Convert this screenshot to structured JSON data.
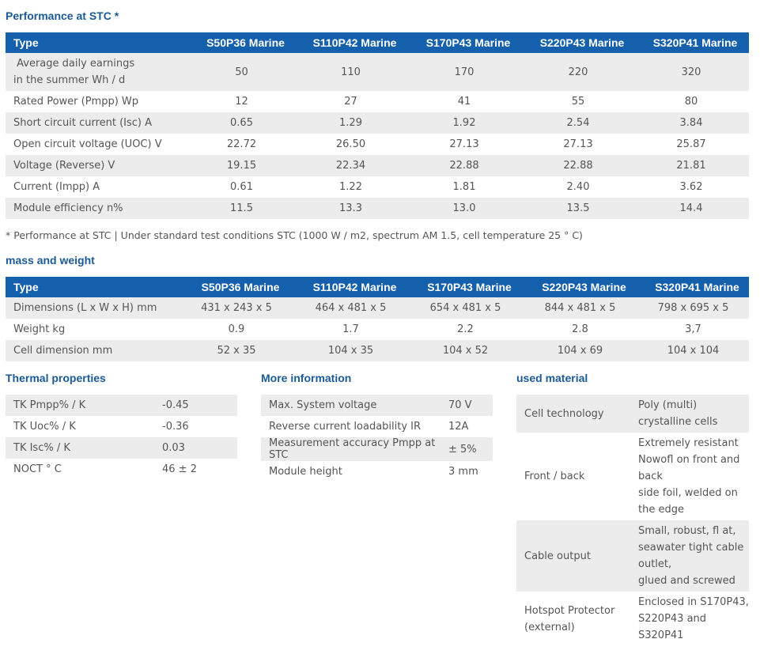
{
  "performance": {
    "title": "Performance at STC *",
    "header": [
      "Type",
      "S50P36 Marine",
      "S110P42 Marine",
      "S170P43 Marine",
      "S220P43 Marine",
      "S320P41 Marine"
    ],
    "rows": [
      {
        "label_line1": " Average daily earnings",
        "label_line2": "in the summer Wh / d",
        "values": [
          "50",
          "110",
          "170",
          "220",
          "320"
        ]
      },
      {
        "label": "Rated Power (Pmpp) Wp",
        "values": [
          "12",
          "27",
          "41",
          "55",
          "80"
        ]
      },
      {
        "label": "Short circuit current (Isc) A",
        "values": [
          "0.65",
          "1.29",
          "1.92",
          "2.54",
          "3.84"
        ]
      },
      {
        "label": "Open circuit voltage (UOC) V",
        "values": [
          "22.72",
          "26.50",
          "27.13",
          "27.13",
          "25.87"
        ]
      },
      {
        "label": "Voltage (Reverse) V",
        "values": [
          "19.15",
          "22.34",
          "22.88",
          "22.88",
          "21.81"
        ]
      },
      {
        "label": "Current (Impp) A",
        "values": [
          "0.61",
          "1.22",
          "1.81",
          "2.40",
          "3.62"
        ]
      },
      {
        "label": "Module efficiency n%",
        "values": [
          "11.5",
          "13.3",
          "13.0",
          "13.5",
          "14.4"
        ]
      }
    ],
    "footnote": "* Performance at STC | Under standard test conditions STC (1000 W / m2, spectrum AM 1.5, cell temperature 25 ° C)"
  },
  "mass": {
    "title": "mass and weight",
    "header": [
      "Type",
      "S50P36 Marine",
      "S110P42 Marine",
      "S170P43 Marine",
      "S220P43 Marine",
      "S320P41 Marine"
    ],
    "rows": [
      {
        "label": "Dimensions (L x W x H) mm",
        "values": [
          "431 x 243 x 5",
          "464 x 481 x 5",
          "654 x 481 x 5",
          "844 x 481 x 5",
          "798 x 695 x 5"
        ]
      },
      {
        "label": "Weight kg",
        "values": [
          "0.9",
          "1.7",
          "2.2",
          "2.8",
          "3,7"
        ]
      },
      {
        "label": "Cell dimension mm",
        "values": [
          "52 x 35",
          "104 x 35",
          "104 x 52",
          "104 x 69",
          "104 x 104"
        ]
      }
    ]
  },
  "thermal": {
    "title": "Thermal properties",
    "rows": [
      {
        "label": "TK Pmpp% / K",
        "value": "-0.45"
      },
      {
        "label": "TK Uoc% / K",
        "value": "-0.36"
      },
      {
        "label": "TK Isc% / K",
        "value": "0.03"
      },
      {
        "label": "NOCT ° C",
        "value": "46 ± 2"
      }
    ]
  },
  "more_info": {
    "title": "More information",
    "rows": [
      {
        "label": "Max. System voltage",
        "value": "70 V"
      },
      {
        "label": "Reverse current loadability IR",
        "value": "12A"
      },
      {
        "label": "Measurement accuracy Pmpp at STC",
        "value": "± 5%"
      },
      {
        "label": "Module height",
        "value": "3 mm"
      }
    ]
  },
  "material": {
    "title": "used material",
    "rows": [
      {
        "label": [
          "Cell technology"
        ],
        "value": [
          "Poly (multi)",
          "crystalline cells"
        ]
      },
      {
        "label": [
          "Front / back"
        ],
        "value": [
          "Extremely resistant",
          "Nowofl on front and",
          "back",
          "side foil, welded on",
          "the edge"
        ]
      },
      {
        "label": [
          "Cable output"
        ],
        "value": [
          "Small, robust, fl at,",
          "seawater tight cable",
          "outlet,",
          "glued and screwed"
        ]
      },
      {
        "label": [
          "Hotspot Protector",
          "(external)"
        ],
        "value": [
          "Enclosed in S170P43,",
          "S220P43 and",
          "S320P41"
        ]
      }
    ]
  }
}
